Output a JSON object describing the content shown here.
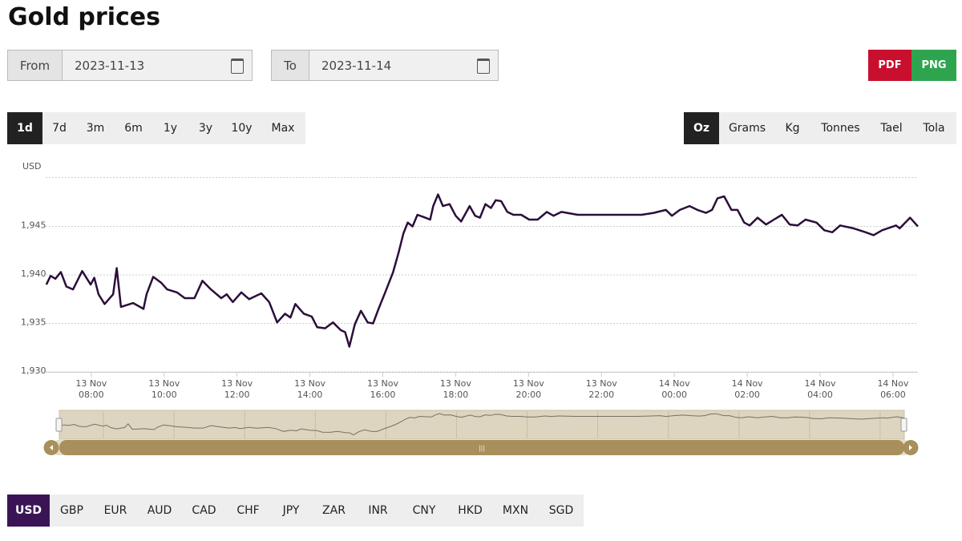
{
  "title": "Gold prices",
  "date_range": {
    "from_label": "From",
    "from_value": "2023-11-13",
    "to_label": "To",
    "to_value": "2023-11-14"
  },
  "export": [
    "PDF",
    "PNG"
  ],
  "ranges": [
    "1d",
    "7d",
    "3m",
    "6m",
    "1y",
    "3y",
    "10y",
    "Max"
  ],
  "units": [
    "Oz",
    "Grams",
    "Kg",
    "Tonnes",
    "Tael",
    "Tola"
  ],
  "currencies": [
    "USD",
    "GBP",
    "EUR",
    "AUD",
    "CAD",
    "CHF",
    "JPY",
    "ZAR",
    "INR",
    "CNY",
    "HKD",
    "MXN",
    "SGD"
  ],
  "chart_data": {
    "type": "line",
    "y_label": "USD",
    "color": "#2b0f3a",
    "grid": true,
    "xlim": [
      "13 Nov 06:45",
      "14 Nov 06:41"
    ],
    "xticks": [
      "13 Nov 08:00",
      "13 Nov 10:00",
      "13 Nov 12:00",
      "13 Nov 14:00",
      "13 Nov 16:00",
      "13 Nov 18:00",
      "13 Nov 20:00",
      "13 Nov 22:00",
      "14 Nov 00:00",
      "14 Nov 02:00",
      "14 Nov 04:00",
      "14 Nov 06:00"
    ],
    "ylim": [
      1930,
      1950
    ],
    "yticks": [
      {
        "value": 1930,
        "label": "1,930"
      },
      {
        "value": 1935,
        "label": "1,935"
      },
      {
        "value": 1940,
        "label": "1,940"
      },
      {
        "value": 1945,
        "label": "1,945"
      }
    ],
    "x": [
      "13 Nov 06:46",
      "13 Nov 06:53",
      "13 Nov 07:01",
      "13 Nov 07:10",
      "13 Nov 07:19",
      "13 Nov 07:30",
      "13 Nov 07:45",
      "13 Nov 07:59",
      "13 Nov 08:05",
      "13 Nov 08:12",
      "13 Nov 08:22",
      "13 Nov 08:36",
      "13 Nov 08:42",
      "13 Nov 08:49",
      "13 Nov 09:09",
      "13 Nov 09:26",
      "13 Nov 09:31",
      "13 Nov 09:42",
      "13 Nov 09:55",
      "13 Nov 10:05",
      "13 Nov 10:21",
      "13 Nov 10:34",
      "13 Nov 10:50",
      "13 Nov 11:03",
      "13 Nov 11:17",
      "13 Nov 11:34",
      "13 Nov 11:43",
      "13 Nov 11:53",
      "13 Nov 12:07",
      "13 Nov 12:20",
      "13 Nov 12:40",
      "13 Nov 12:53",
      "13 Nov 13:06",
      "13 Nov 13:19",
      "13 Nov 13:28",
      "13 Nov 13:36",
      "13 Nov 13:50",
      "13 Nov 14:03",
      "13 Nov 14:12",
      "13 Nov 14:25",
      "13 Nov 14:38",
      "13 Nov 14:51",
      "13 Nov 14:58",
      "13 Nov 15:05",
      "13 Nov 15:14",
      "13 Nov 15:24",
      "13 Nov 15:35",
      "13 Nov 15:44",
      "13 Nov 15:53",
      "13 Nov 16:04",
      "13 Nov 16:17",
      "13 Nov 16:26",
      "13 Nov 16:34",
      "13 Nov 16:41",
      "13 Nov 16:49",
      "13 Nov 16:57",
      "13 Nov 17:10",
      "13 Nov 17:18",
      "13 Nov 17:23",
      "13 Nov 17:31",
      "13 Nov 17:39",
      "13 Nov 17:50",
      "13 Nov 18:00",
      "13 Nov 18:09",
      "13 Nov 18:23",
      "13 Nov 18:32",
      "13 Nov 18:40",
      "13 Nov 18:49",
      "13 Nov 18:58",
      "13 Nov 19:06",
      "13 Nov 19:15",
      "13 Nov 19:25",
      "13 Nov 19:35",
      "13 Nov 19:48",
      "13 Nov 20:01",
      "13 Nov 20:15",
      "13 Nov 20:30",
      "13 Nov 20:41",
      "13 Nov 20:54",
      "13 Nov 21:21",
      "13 Nov 22:13",
      "13 Nov 23:06",
      "13 Nov 23:26",
      "13 Nov 23:46",
      "13 Nov 23:56",
      "14 Nov 00:09",
      "14 Nov 00:25",
      "14 Nov 00:38",
      "14 Nov 00:52",
      "14 Nov 01:02",
      "14 Nov 01:11",
      "14 Nov 01:22",
      "14 Nov 01:34",
      "14 Nov 01:44",
      "14 Nov 01:55",
      "14 Nov 02:04",
      "14 Nov 02:17",
      "14 Nov 02:31",
      "14 Nov 02:44",
      "14 Nov 02:57",
      "14 Nov 03:10",
      "14 Nov 03:23",
      "14 Nov 03:36",
      "14 Nov 03:54",
      "14 Nov 04:07",
      "14 Nov 04:20",
      "14 Nov 04:33",
      "14 Nov 04:55",
      "14 Nov 05:15",
      "14 Nov 05:28",
      "14 Nov 05:42",
      "14 Nov 06:05",
      "14 Nov 06:11",
      "14 Nov 06:28",
      "14 Nov 06:41"
    ],
    "values": [
      1939.0,
      1939.9,
      1939.6,
      1940.3,
      1938.8,
      1938.5,
      1940.4,
      1939.0,
      1939.7,
      1938.0,
      1937.0,
      1938.0,
      1940.7,
      1936.7,
      1937.1,
      1936.5,
      1938.0,
      1939.8,
      1939.2,
      1938.5,
      1938.2,
      1937.6,
      1937.6,
      1939.4,
      1938.5,
      1937.6,
      1938.0,
      1937.2,
      1938.2,
      1937.5,
      1938.1,
      1937.2,
      1935.1,
      1936.0,
      1935.6,
      1937.0,
      1936.0,
      1935.7,
      1934.6,
      1934.5,
      1935.1,
      1934.3,
      1934.1,
      1932.6,
      1934.9,
      1936.3,
      1935.1,
      1935.0,
      1936.5,
      1938.2,
      1940.3,
      1942.3,
      1944.3,
      1945.4,
      1945.0,
      1946.2,
      1945.9,
      1945.7,
      1947.1,
      1948.3,
      1947.1,
      1947.3,
      1946.1,
      1945.5,
      1947.1,
      1946.1,
      1945.9,
      1947.3,
      1946.9,
      1947.7,
      1947.6,
      1946.5,
      1946.2,
      1946.2,
      1945.7,
      1945.7,
      1946.5,
      1946.1,
      1946.5,
      1946.2,
      1946.2,
      1946.2,
      1946.4,
      1946.7,
      1946.1,
      1946.7,
      1947.1,
      1946.7,
      1946.4,
      1946.7,
      1947.9,
      1948.1,
      1946.7,
      1946.7,
      1945.4,
      1945.1,
      1945.9,
      1945.2,
      1945.7,
      1946.2,
      1945.2,
      1945.1,
      1945.7,
      1945.4,
      1944.6,
      1944.4,
      1945.1,
      1944.8,
      1944.4,
      1944.1,
      1944.6,
      1945.1,
      1944.8,
      1945.9,
      1945.0
    ]
  }
}
